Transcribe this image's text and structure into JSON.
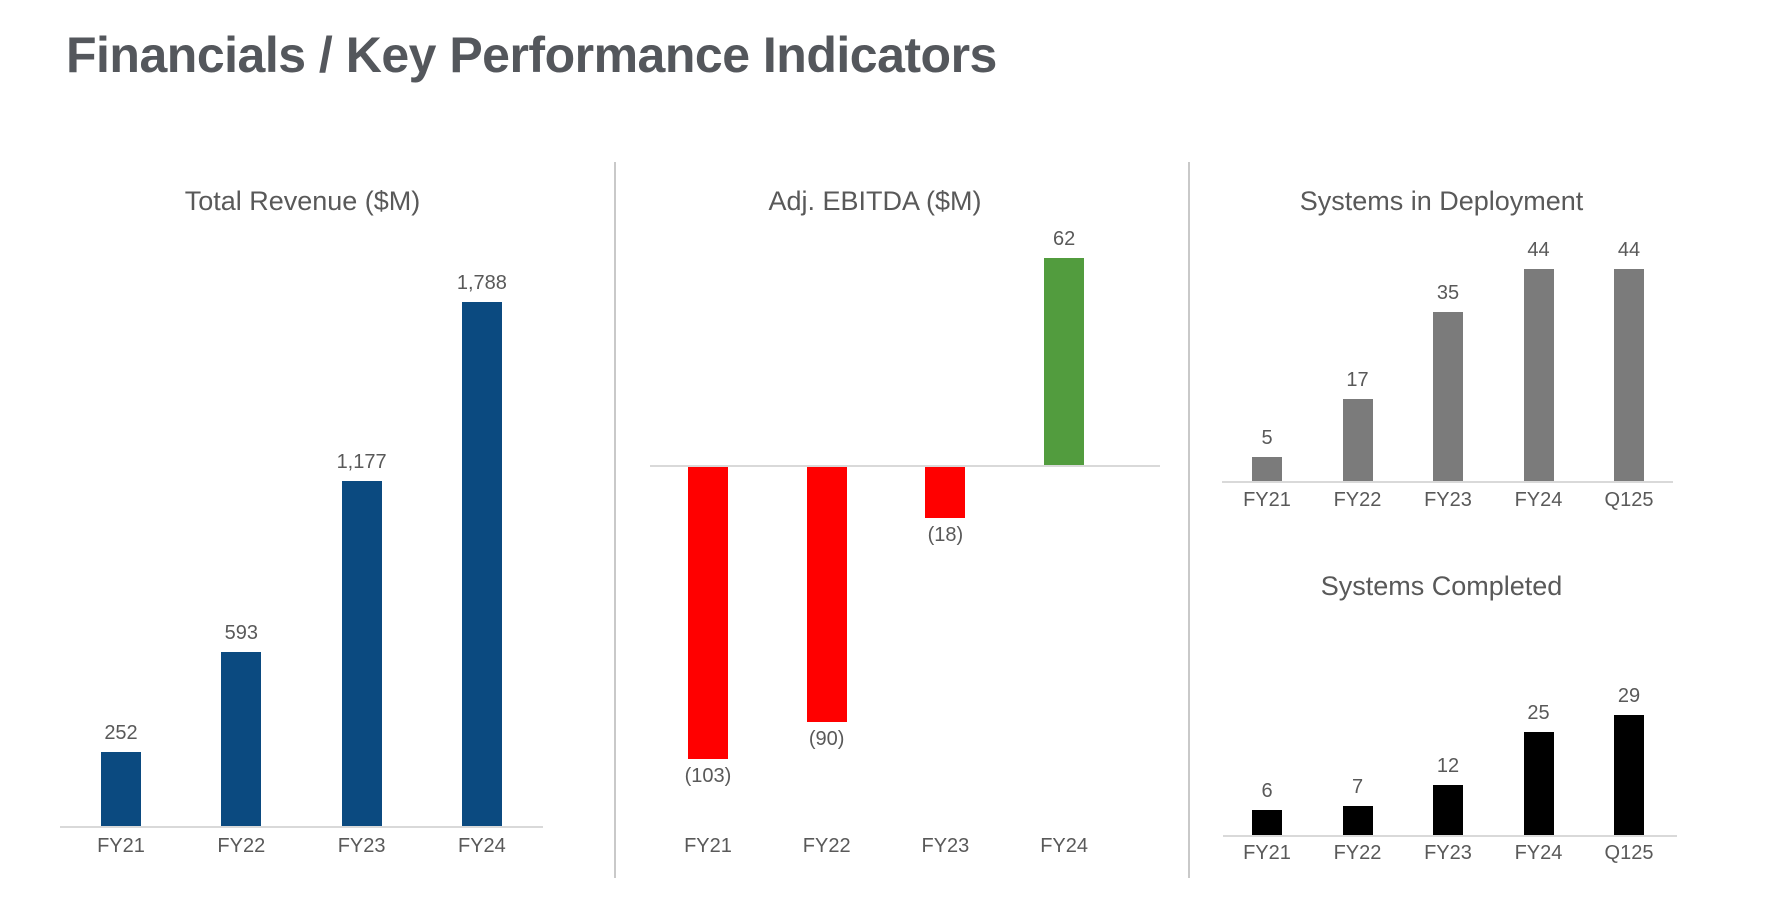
{
  "page": {
    "title": "Financials / Key Performance Indicators"
  },
  "colors": {
    "background": "#FFFFFF",
    "heading_text": "#54575C",
    "chart_text": "#595959",
    "axis_line": "#D9D9D9",
    "divider_line": "#C9C9C9",
    "revenue_bar": "#0B4A80",
    "ebitda_negative": "#FF0000",
    "ebitda_positive": "#529C3E",
    "deployment_bar": "#7B7B7B",
    "completed_bar": "#000000"
  },
  "chart_data": [
    {
      "id": "revenue",
      "type": "bar",
      "title": "Total Revenue ($M)",
      "categories": [
        "FY21",
        "FY22",
        "FY23",
        "FY24"
      ],
      "values": [
        252,
        593,
        1177,
        1788
      ],
      "labels": [
        "252",
        "593",
        "1,177",
        "1,788"
      ],
      "color": "#0B4A80",
      "xlabel": "",
      "ylabel": "",
      "ylim": [
        0,
        2000
      ],
      "grid": false,
      "legend": false,
      "data_labels": true
    },
    {
      "id": "ebitda",
      "type": "bar",
      "title": "Adj. EBITDA ($M)",
      "categories": [
        "FY21",
        "FY22",
        "FY23",
        "FY24"
      ],
      "values": [
        -103,
        -90,
        -18,
        62
      ],
      "labels": [
        "(103)",
        "(90)",
        "(18)",
        "62"
      ],
      "negative_color": "#FF0000",
      "positive_color": "#529C3E",
      "xlabel": "",
      "ylabel": "",
      "ylim": [
        -120,
        80
      ],
      "grid": false,
      "legend": false,
      "data_labels": true
    },
    {
      "id": "deployment",
      "type": "bar",
      "title": "Systems in Deployment",
      "categories": [
        "FY21",
        "FY22",
        "FY23",
        "FY24",
        "Q125"
      ],
      "values": [
        5,
        17,
        35,
        44,
        44
      ],
      "labels": [
        "5",
        "17",
        "35",
        "44",
        "44"
      ],
      "color": "#7B7B7B",
      "xlabel": "",
      "ylabel": "",
      "ylim": [
        0,
        50
      ],
      "grid": false,
      "legend": false,
      "data_labels": true
    },
    {
      "id": "completed",
      "type": "bar",
      "title": "Systems Completed",
      "categories": [
        "FY21",
        "FY22",
        "FY23",
        "FY24",
        "Q125"
      ],
      "values": [
        6,
        7,
        12,
        25,
        29
      ],
      "labels": [
        "6",
        "7",
        "12",
        "25",
        "29"
      ],
      "color": "#000000",
      "xlabel": "",
      "ylabel": "",
      "ylim": [
        0,
        35
      ],
      "grid": false,
      "legend": false,
      "data_labels": true
    }
  ]
}
